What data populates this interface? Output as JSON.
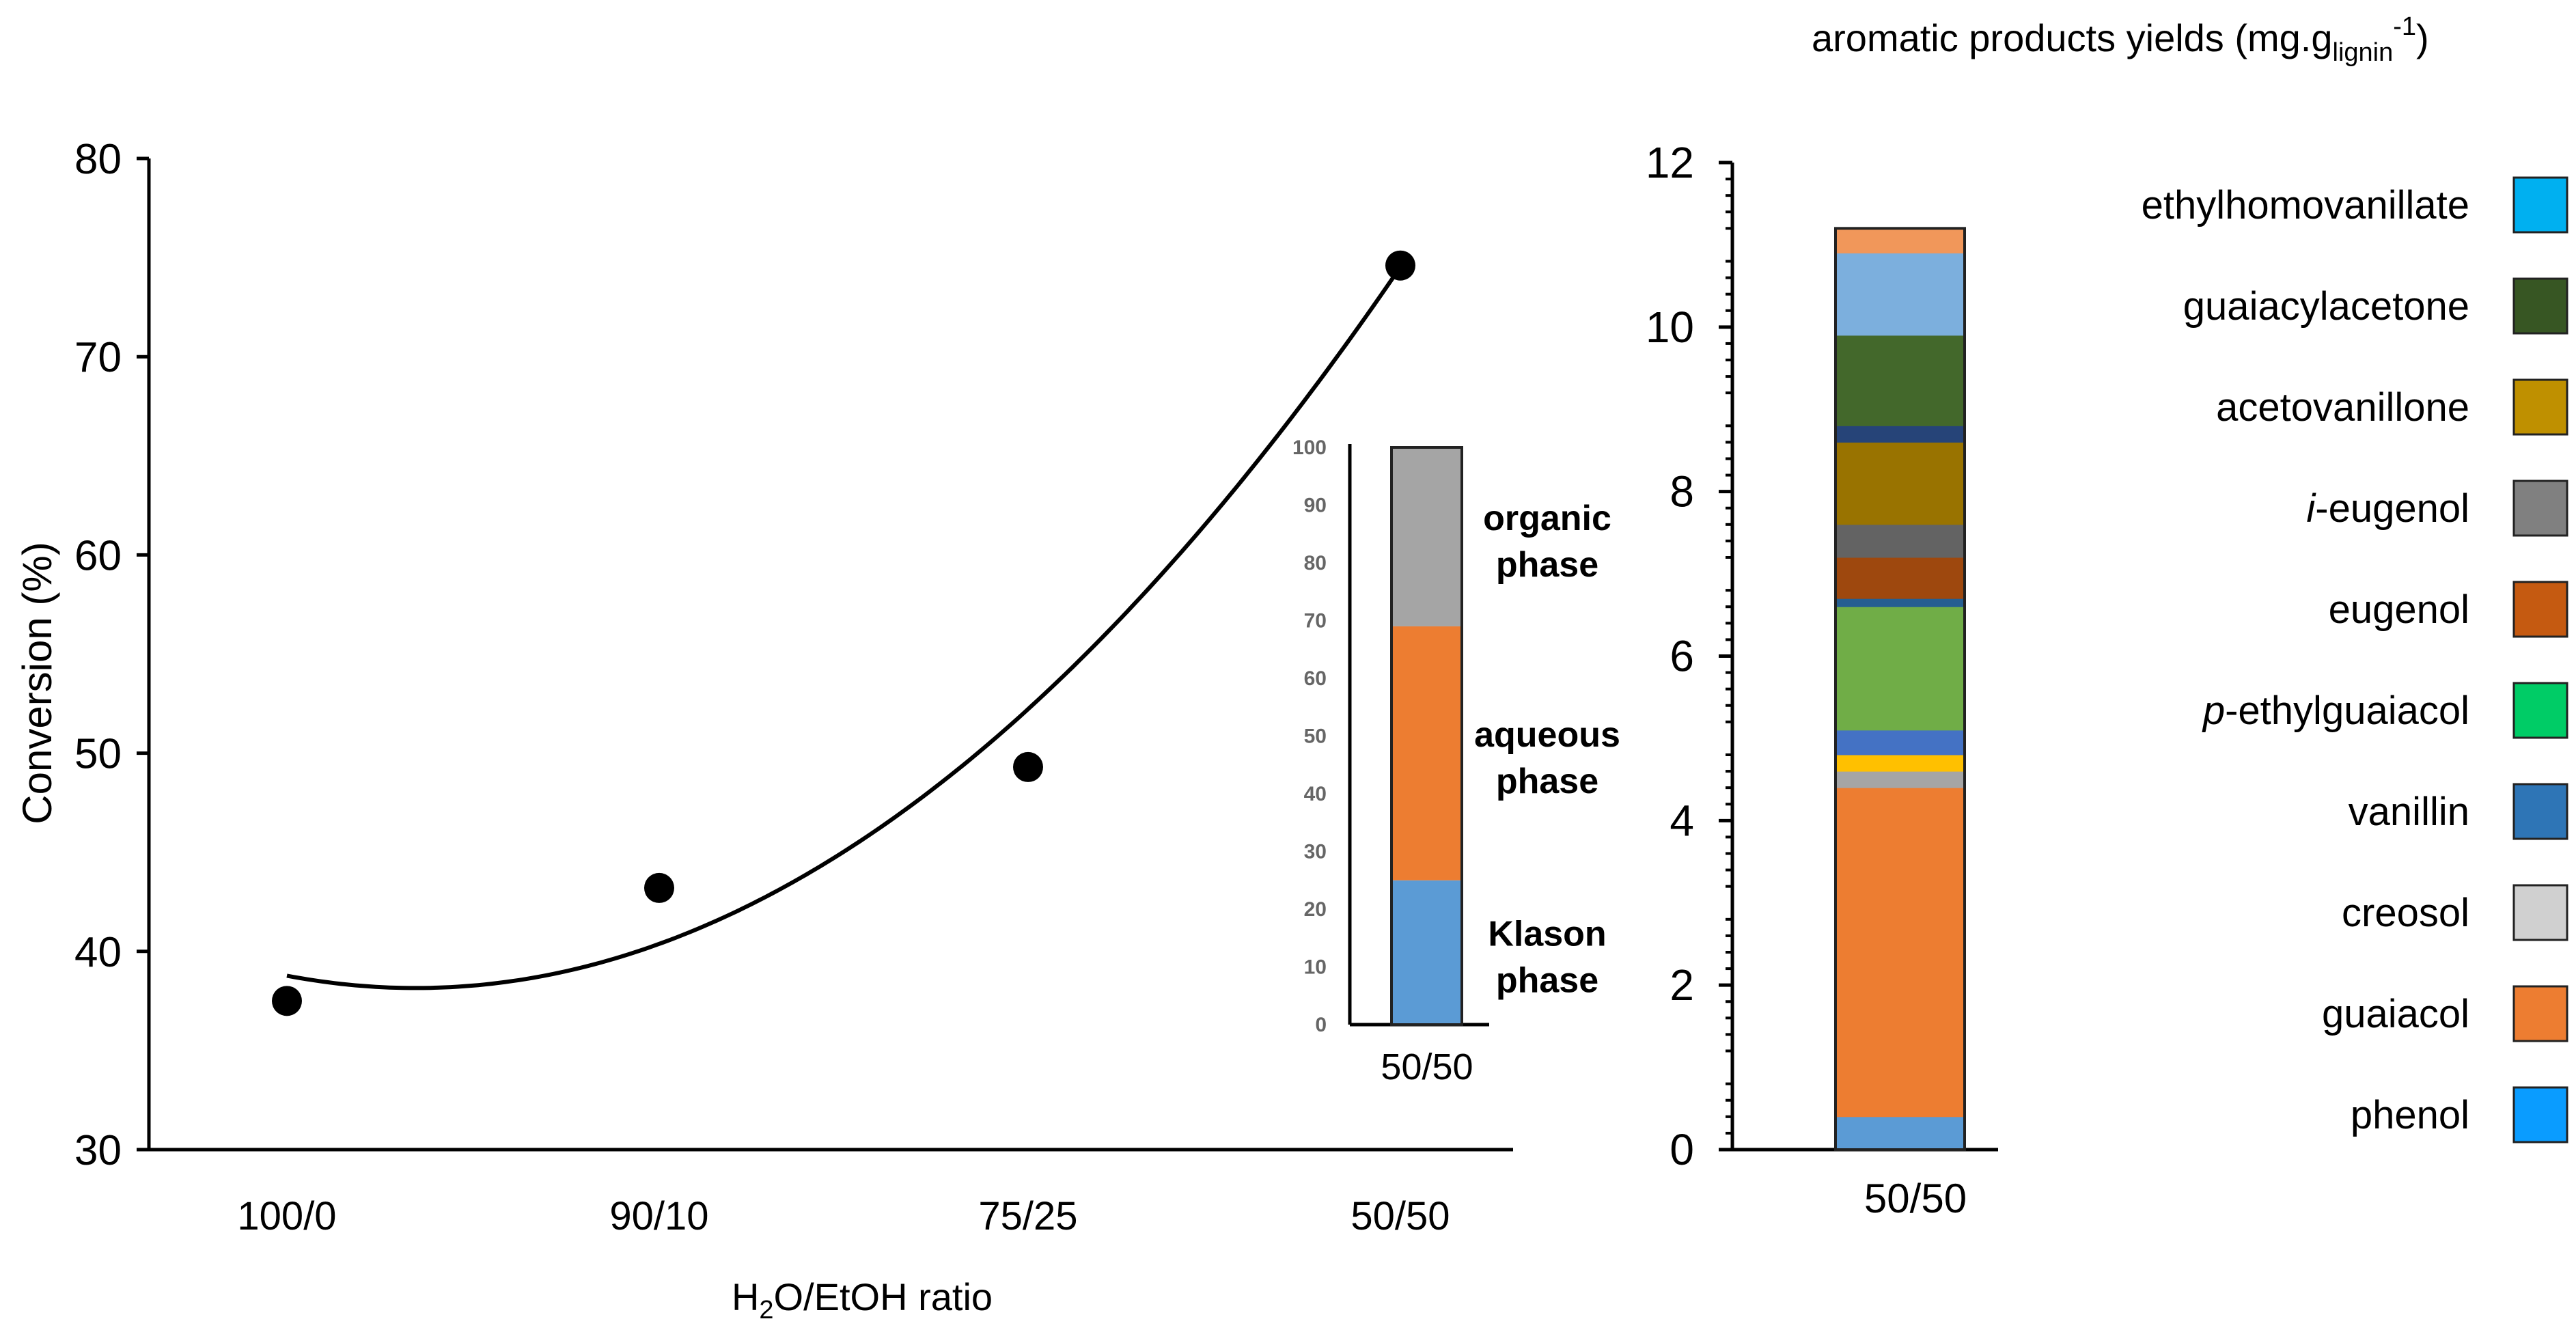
{
  "chart_data": [
    {
      "type": "scatter",
      "title": "",
      "xlabel": "H2O/EtOH ratio",
      "xlabel_parts": [
        "H",
        "2",
        "O/EtOH ratio"
      ],
      "ylabel": "Conversion (%)",
      "categories": [
        "100/0",
        "90/10",
        "75/25",
        "50/50"
      ],
      "values": [
        37.5,
        43.2,
        49.3,
        74.6
      ],
      "trendline": {
        "kind": "polynomial-fit",
        "values": [
          38.7,
          40.6,
          52.0,
          74.6
        ]
      },
      "ylim": [
        30,
        80
      ],
      "yticks": [
        30,
        40,
        50,
        60,
        70,
        80
      ]
    },
    {
      "type": "bar",
      "stacked": true,
      "inset": true,
      "categories": [
        "50/50"
      ],
      "series": [
        {
          "name": "Klason phase",
          "label_lines": [
            "Klason",
            "phase"
          ],
          "color": "#5b9bd5",
          "values": [
            25
          ]
        },
        {
          "name": "aqueous phase",
          "label_lines": [
            "aqueous",
            "phase"
          ],
          "color": "#ed7d31",
          "values": [
            44
          ]
        },
        {
          "name": "organic phase",
          "label_lines": [
            "organic",
            "phase"
          ],
          "color": "#a5a5a5",
          "values": [
            31
          ]
        }
      ],
      "ylim": [
        0,
        100
      ],
      "yticks": [
        0,
        10,
        20,
        30,
        40,
        50,
        60,
        70,
        80,
        90,
        100
      ]
    },
    {
      "type": "bar",
      "stacked": true,
      "title": "aromatic products yields (mg.glignin-1)",
      "title_parts": {
        "main": "aromatic products yields (mg.g",
        "sub": "lignin",
        "sup": "-1",
        "close": ")"
      },
      "categories": [
        "50/50"
      ],
      "ylim": [
        0,
        12
      ],
      "yticks": [
        0,
        2,
        4,
        6,
        8,
        10,
        12
      ],
      "series": [
        {
          "name": "phenol",
          "color": "#5b9bd5",
          "values": [
            0.4
          ]
        },
        {
          "name": "guaiacol",
          "color": "#ed7d31",
          "values": [
            4.0
          ]
        },
        {
          "name": "creosol",
          "color": "#a5a5a5",
          "values": [
            0.2
          ]
        },
        {
          "name": "",
          "color": "#ffc000",
          "values": [
            0.2
          ]
        },
        {
          "name": "vanillin",
          "color": "#4472c4",
          "values": [
            0.3
          ]
        },
        {
          "name": "p-ethylguaiacol",
          "color": "#70ad47",
          "values": [
            1.5
          ]
        },
        {
          "name": "",
          "color": "#255e91",
          "values": [
            0.1
          ]
        },
        {
          "name": "eugenol",
          "color": "#9e480e",
          "values": [
            0.5
          ]
        },
        {
          "name": "i-eugenol",
          "color": "#636363",
          "values": [
            0.4
          ]
        },
        {
          "name": "acetovanillone",
          "color": "#997300",
          "values": [
            1.0
          ]
        },
        {
          "name": "",
          "color": "#264478",
          "values": [
            0.2
          ]
        },
        {
          "name": "guaiacylacetone",
          "color": "#43682b",
          "values": [
            1.1
          ]
        },
        {
          "name": "",
          "color": "#7cafdd",
          "values": [
            1.0
          ]
        },
        {
          "name": "",
          "color": "#f1975a",
          "values": [
            0.3
          ]
        }
      ],
      "legend": {
        "placement": "right",
        "entries": [
          {
            "label": "ethylhomovanillate",
            "color": "#00b0f0"
          },
          {
            "label": "guaiacylacetone",
            "color": "#375623"
          },
          {
            "label": "acetovanillone",
            "color": "#bf9000"
          },
          {
            "label": "i-eugenol",
            "italic_prefix": "i",
            "rest": "-eugenol",
            "color": "#808080"
          },
          {
            "label": "eugenol",
            "color": "#c55a11"
          },
          {
            "label": "p-ethylguaiacol",
            "italic_prefix": "p",
            "rest": "-ethylguaiacol",
            "color": "#00cc66"
          },
          {
            "label": "vanillin",
            "color": "#2e75b6"
          },
          {
            "label": "creosol",
            "color": "#d0d0d0"
          },
          {
            "label": "guaiacol",
            "color": "#ed7d31"
          },
          {
            "label": "phenol",
            "color": "#0a9cff"
          }
        ]
      }
    }
  ]
}
